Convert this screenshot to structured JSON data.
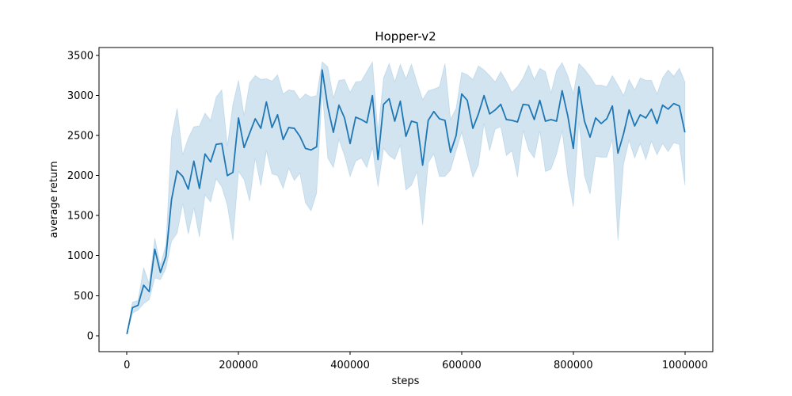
{
  "chart_data": {
    "type": "line",
    "title": "Hopper-v2",
    "xlabel": "steps",
    "ylabel": "average return",
    "xlim": [
      -50000,
      1050000
    ],
    "ylim": [
      -200,
      3600
    ],
    "x_ticks": [
      0,
      200000,
      400000,
      600000,
      800000,
      1000000
    ],
    "x_tick_labels": [
      "0",
      "200000",
      "400000",
      "600000",
      "800000",
      "1000000"
    ],
    "y_ticks": [
      0,
      500,
      1000,
      1500,
      2000,
      2500,
      3000,
      3500
    ],
    "y_tick_labels": [
      "0",
      "500",
      "1000",
      "1500",
      "2000",
      "2500",
      "3000",
      "3500"
    ],
    "grid": false,
    "series": [
      {
        "name": "average return",
        "color": "#1f77b4",
        "band_color": "#1f77b4",
        "band_opacity": 0.2,
        "x_step": 10000,
        "mean": [
          20,
          350,
          380,
          630,
          550,
          1080,
          790,
          990,
          1700,
          2060,
          1990,
          1830,
          2180,
          1840,
          2270,
          2170,
          2390,
          2400,
          2000,
          2040,
          2720,
          2350,
          2530,
          2710,
          2590,
          2920,
          2600,
          2760,
          2450,
          2600,
          2590,
          2490,
          2340,
          2320,
          2360,
          3320,
          2860,
          2540,
          2880,
          2720,
          2400,
          2730,
          2700,
          2660,
          3000,
          2200,
          2890,
          2960,
          2680,
          2930,
          2490,
          2680,
          2660,
          2130,
          2690,
          2800,
          2710,
          2690,
          2290,
          2500,
          3020,
          2940,
          2590,
          2770,
          3000,
          2770,
          2820,
          2890,
          2700,
          2690,
          2670,
          2890,
          2880,
          2700,
          2940,
          2680,
          2700,
          2680,
          3060,
          2750,
          2340,
          3110,
          2680,
          2480,
          2720,
          2650,
          2710,
          2870,
          2280,
          2520,
          2820,
          2620,
          2760,
          2720,
          2830,
          2650,
          2880,
          2830,
          2900,
          2870,
          2540
        ],
        "lower": [
          20,
          280,
          320,
          400,
          450,
          720,
          700,
          840,
          1180,
          1280,
          1650,
          1270,
          1600,
          1230,
          1760,
          1670,
          1960,
          1860,
          1630,
          1190,
          2050,
          1950,
          1680,
          2220,
          1870,
          2310,
          2020,
          2000,
          1840,
          2090,
          1940,
          2030,
          1660,
          1560,
          1780,
          3060,
          2220,
          2100,
          2450,
          2250,
          1990,
          2180,
          2220,
          2100,
          2350,
          1860,
          2340,
          2250,
          2200,
          2380,
          1820,
          1880,
          2050,
          1380,
          2160,
          2270,
          1990,
          1990,
          2070,
          2310,
          2540,
          2260,
          1980,
          2130,
          2650,
          2310,
          2580,
          2610,
          2250,
          2310,
          1980,
          2560,
          2320,
          2220,
          2560,
          2050,
          2080,
          2270,
          2560,
          1990,
          1610,
          2680,
          2000,
          1770,
          2240,
          2230,
          2230,
          2450,
          1190,
          2140,
          2440,
          2220,
          2400,
          2200,
          2430,
          2260,
          2400,
          2300,
          2410,
          2390,
          1880
        ],
        "upper": [
          20,
          420,
          440,
          850,
          650,
          1220,
          880,
          1140,
          2480,
          2840,
          2260,
          2470,
          2610,
          2620,
          2780,
          2690,
          2980,
          3070,
          2370,
          2890,
          3190,
          2750,
          3160,
          3250,
          3200,
          3210,
          3180,
          3260,
          3020,
          3070,
          3060,
          2950,
          3020,
          2980,
          3000,
          3420,
          3360,
          2970,
          3190,
          3200,
          3040,
          3170,
          3180,
          3300,
          3420,
          2540,
          3220,
          3400,
          3170,
          3390,
          3210,
          3390,
          3160,
          2950,
          3060,
          3080,
          3110,
          3400,
          2700,
          2840,
          3290,
          3260,
          3200,
          3370,
          3320,
          3250,
          3170,
          3300,
          3180,
          3040,
          3110,
          3220,
          3380,
          3200,
          3340,
          3300,
          3030,
          3310,
          3410,
          3250,
          3020,
          3400,
          3330,
          3240,
          3130,
          3130,
          3110,
          3250,
          3130,
          3000,
          3200,
          3070,
          3220,
          3190,
          3190,
          3020,
          3220,
          3320,
          3240,
          3340,
          3170
        ]
      }
    ]
  }
}
